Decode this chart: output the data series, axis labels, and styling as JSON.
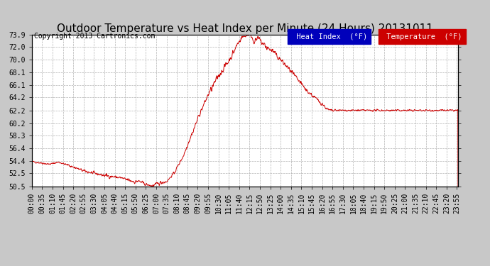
{
  "title": "Outdoor Temperature vs Heat Index per Minute (24 Hours) 20131011",
  "copyright": "Copyright 2013 Cartronics.com",
  "background_color": "#c8c8c8",
  "plot_bg_color": "#ffffff",
  "line_color": "#cc0000",
  "ylim": [
    50.5,
    73.9
  ],
  "yticks": [
    50.5,
    52.5,
    54.4,
    56.4,
    58.3,
    60.2,
    62.2,
    64.2,
    66.1,
    68.1,
    70.0,
    72.0,
    73.9
  ],
  "legend_heat_index_bg": "#0000bb",
  "legend_temp_bg": "#cc0000",
  "legend_text_color": "#ffffff",
  "grid_color": "#aaaaaa",
  "title_fontsize": 11,
  "tick_fontsize": 7,
  "copyright_fontsize": 7,
  "legend_fontsize": 7.5,
  "xlabel_rotation": 90,
  "tick_interval_minutes": 35
}
